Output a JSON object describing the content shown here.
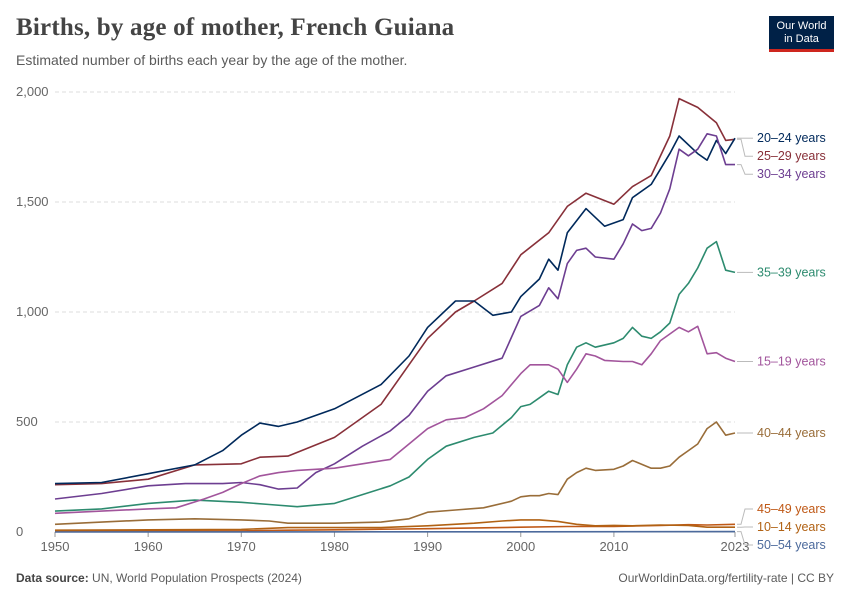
{
  "header": {
    "title": "Births, by age of mother, French Guiana",
    "subtitle": "Estimated number of births each year by the age of the mother."
  },
  "logo": {
    "line1": "Our World",
    "line2": "in Data",
    "bg": "#002147",
    "accent": "#ce261e"
  },
  "footer": {
    "source_label": "Data source:",
    "source_text": "UN, World Population Prospects (2024)",
    "url": "OurWorldinData.org/fertility-rate | CC BY"
  },
  "chart_data": {
    "type": "line",
    "xlim": [
      1950,
      2023
    ],
    "ylim": [
      0,
      2000
    ],
    "x_ticks": [
      "1950",
      "1960",
      "1970",
      "1980",
      "1990",
      "2000",
      "2010",
      "2023"
    ],
    "y_ticks": [
      "0",
      "500",
      "1,000",
      "1,500",
      "2,000"
    ],
    "grid": "horizontal dashed",
    "legend": "right, inline labels at line ends",
    "series": [
      {
        "name": "25–29 years",
        "color": "#883039",
        "points": [
          [
            1950,
            215
          ],
          [
            1955,
            220
          ],
          [
            1960,
            240
          ],
          [
            1965,
            305
          ],
          [
            1970,
            310
          ],
          [
            1972,
            340
          ],
          [
            1975,
            345
          ],
          [
            1980,
            430
          ],
          [
            1985,
            580
          ],
          [
            1990,
            880
          ],
          [
            1993,
            1000
          ],
          [
            1995,
            1050
          ],
          [
            1998,
            1130
          ],
          [
            2000,
            1260
          ],
          [
            2003,
            1360
          ],
          [
            2005,
            1480
          ],
          [
            2007,
            1540
          ],
          [
            2010,
            1490
          ],
          [
            2012,
            1570
          ],
          [
            2014,
            1620
          ],
          [
            2016,
            1800
          ],
          [
            2017,
            1970
          ],
          [
            2019,
            1930
          ],
          [
            2021,
            1860
          ],
          [
            2022,
            1780
          ],
          [
            2023,
            1785
          ]
        ]
      },
      {
        "name": "20–24 years",
        "color": "#00295b",
        "points": [
          [
            1950,
            220
          ],
          [
            1955,
            225
          ],
          [
            1960,
            265
          ],
          [
            1965,
            305
          ],
          [
            1968,
            370
          ],
          [
            1970,
            440
          ],
          [
            1972,
            495
          ],
          [
            1974,
            480
          ],
          [
            1976,
            500
          ],
          [
            1980,
            560
          ],
          [
            1985,
            670
          ],
          [
            1988,
            800
          ],
          [
            1990,
            930
          ],
          [
            1993,
            1050
          ],
          [
            1995,
            1050
          ],
          [
            1997,
            985
          ],
          [
            1999,
            1000
          ],
          [
            2000,
            1070
          ],
          [
            2002,
            1150
          ],
          [
            2003,
            1240
          ],
          [
            2004,
            1190
          ],
          [
            2005,
            1360
          ],
          [
            2007,
            1470
          ],
          [
            2009,
            1390
          ],
          [
            2011,
            1420
          ],
          [
            2012,
            1520
          ],
          [
            2014,
            1580
          ],
          [
            2016,
            1720
          ],
          [
            2017,
            1800
          ],
          [
            2019,
            1720
          ],
          [
            2020,
            1690
          ],
          [
            2021,
            1780
          ],
          [
            2022,
            1720
          ],
          [
            2023,
            1790
          ]
        ]
      },
      {
        "name": "30–34 years",
        "color": "#6d3e91",
        "points": [
          [
            1950,
            150
          ],
          [
            1955,
            175
          ],
          [
            1960,
            210
          ],
          [
            1964,
            220
          ],
          [
            1968,
            220
          ],
          [
            1970,
            225
          ],
          [
            1972,
            215
          ],
          [
            1974,
            195
          ],
          [
            1976,
            200
          ],
          [
            1978,
            270
          ],
          [
            1980,
            310
          ],
          [
            1983,
            390
          ],
          [
            1986,
            460
          ],
          [
            1988,
            530
          ],
          [
            1990,
            640
          ],
          [
            1992,
            710
          ],
          [
            1995,
            750
          ],
          [
            1998,
            790
          ],
          [
            2000,
            980
          ],
          [
            2002,
            1030
          ],
          [
            2003,
            1110
          ],
          [
            2004,
            1060
          ],
          [
            2005,
            1220
          ],
          [
            2006,
            1280
          ],
          [
            2007,
            1290
          ],
          [
            2008,
            1250
          ],
          [
            2010,
            1240
          ],
          [
            2011,
            1310
          ],
          [
            2012,
            1400
          ],
          [
            2013,
            1370
          ],
          [
            2014,
            1380
          ],
          [
            2015,
            1450
          ],
          [
            2016,
            1560
          ],
          [
            2017,
            1740
          ],
          [
            2018,
            1710
          ],
          [
            2019,
            1740
          ],
          [
            2020,
            1810
          ],
          [
            2021,
            1800
          ],
          [
            2022,
            1670
          ],
          [
            2023,
            1670
          ]
        ]
      },
      {
        "name": "35–39 years",
        "color": "#2d8b6f",
        "points": [
          [
            1950,
            95
          ],
          [
            1955,
            105
          ],
          [
            1960,
            130
          ],
          [
            1965,
            145
          ],
          [
            1970,
            135
          ],
          [
            1973,
            125
          ],
          [
            1976,
            115
          ],
          [
            1980,
            130
          ],
          [
            1983,
            170
          ],
          [
            1986,
            210
          ],
          [
            1988,
            250
          ],
          [
            1990,
            330
          ],
          [
            1992,
            390
          ],
          [
            1995,
            430
          ],
          [
            1997,
            450
          ],
          [
            1999,
            520
          ],
          [
            2000,
            570
          ],
          [
            2001,
            580
          ],
          [
            2002,
            610
          ],
          [
            2003,
            640
          ],
          [
            2004,
            625
          ],
          [
            2005,
            760
          ],
          [
            2006,
            840
          ],
          [
            2007,
            860
          ],
          [
            2008,
            840
          ],
          [
            2010,
            860
          ],
          [
            2011,
            880
          ],
          [
            2012,
            930
          ],
          [
            2013,
            890
          ],
          [
            2014,
            880
          ],
          [
            2015,
            910
          ],
          [
            2016,
            950
          ],
          [
            2017,
            1080
          ],
          [
            2018,
            1130
          ],
          [
            2019,
            1200
          ],
          [
            2020,
            1290
          ],
          [
            2021,
            1320
          ],
          [
            2022,
            1190
          ],
          [
            2023,
            1180
          ]
        ]
      },
      {
        "name": "15–19 years",
        "color": "#a2559c",
        "points": [
          [
            1950,
            85
          ],
          [
            1955,
            95
          ],
          [
            1960,
            105
          ],
          [
            1963,
            110
          ],
          [
            1966,
            150
          ],
          [
            1968,
            180
          ],
          [
            1970,
            220
          ],
          [
            1972,
            255
          ],
          [
            1974,
            270
          ],
          [
            1976,
            280
          ],
          [
            1980,
            290
          ],
          [
            1983,
            310
          ],
          [
            1986,
            330
          ],
          [
            1988,
            400
          ],
          [
            1990,
            470
          ],
          [
            1992,
            510
          ],
          [
            1994,
            520
          ],
          [
            1996,
            560
          ],
          [
            1998,
            620
          ],
          [
            2000,
            720
          ],
          [
            2001,
            760
          ],
          [
            2003,
            760
          ],
          [
            2004,
            740
          ],
          [
            2005,
            680
          ],
          [
            2006,
            740
          ],
          [
            2007,
            810
          ],
          [
            2008,
            800
          ],
          [
            2009,
            780
          ],
          [
            2011,
            775
          ],
          [
            2012,
            775
          ],
          [
            2013,
            760
          ],
          [
            2014,
            810
          ],
          [
            2015,
            870
          ],
          [
            2016,
            900
          ],
          [
            2017,
            930
          ],
          [
            2018,
            910
          ],
          [
            2019,
            935
          ],
          [
            2020,
            810
          ],
          [
            2021,
            815
          ],
          [
            2022,
            790
          ],
          [
            2023,
            775
          ]
        ]
      },
      {
        "name": "40–44 years",
        "color": "#996d39",
        "points": [
          [
            1950,
            35
          ],
          [
            1955,
            45
          ],
          [
            1960,
            55
          ],
          [
            1965,
            60
          ],
          [
            1970,
            55
          ],
          [
            1973,
            50
          ],
          [
            1975,
            40
          ],
          [
            1980,
            40
          ],
          [
            1985,
            45
          ],
          [
            1988,
            60
          ],
          [
            1990,
            90
          ],
          [
            1993,
            100
          ],
          [
            1996,
            110
          ],
          [
            1999,
            140
          ],
          [
            2000,
            160
          ],
          [
            2001,
            165
          ],
          [
            2002,
            165
          ],
          [
            2003,
            175
          ],
          [
            2004,
            170
          ],
          [
            2005,
            240
          ],
          [
            2006,
            270
          ],
          [
            2007,
            290
          ],
          [
            2008,
            280
          ],
          [
            2010,
            285
          ],
          [
            2011,
            300
          ],
          [
            2012,
            325
          ],
          [
            2014,
            290
          ],
          [
            2015,
            290
          ],
          [
            2016,
            300
          ],
          [
            2017,
            340
          ],
          [
            2018,
            370
          ],
          [
            2019,
            400
          ],
          [
            2020,
            470
          ],
          [
            2021,
            500
          ],
          [
            2022,
            440
          ],
          [
            2023,
            450
          ]
        ]
      },
      {
        "name": "45–49 years",
        "color": "#c05917",
        "points": [
          [
            1950,
            3
          ],
          [
            1960,
            4
          ],
          [
            1970,
            5
          ],
          [
            1975,
            8
          ],
          [
            1980,
            10
          ],
          [
            1990,
            15
          ],
          [
            2000,
            22
          ],
          [
            2005,
            25
          ],
          [
            2010,
            25
          ],
          [
            2015,
            30
          ],
          [
            2018,
            33
          ],
          [
            2020,
            32
          ],
          [
            2023,
            35
          ]
        ]
      },
      {
        "name": "10–14 years",
        "color": "#b16214",
        "points": [
          [
            1950,
            8
          ],
          [
            1960,
            10
          ],
          [
            1970,
            12
          ],
          [
            1975,
            20
          ],
          [
            1980,
            20
          ],
          [
            1985,
            20
          ],
          [
            1990,
            28
          ],
          [
            1995,
            40
          ],
          [
            1998,
            50
          ],
          [
            2000,
            55
          ],
          [
            2002,
            55
          ],
          [
            2004,
            48
          ],
          [
            2006,
            35
          ],
          [
            2008,
            28
          ],
          [
            2010,
            30
          ],
          [
            2012,
            28
          ],
          [
            2015,
            32
          ],
          [
            2018,
            30
          ],
          [
            2020,
            22
          ],
          [
            2023,
            22
          ]
        ]
      },
      {
        "name": "50–54 years",
        "color": "#4c6a9c",
        "points": [
          [
            1950,
            0
          ],
          [
            2000,
            1
          ],
          [
            2023,
            2
          ]
        ]
      }
    ]
  }
}
